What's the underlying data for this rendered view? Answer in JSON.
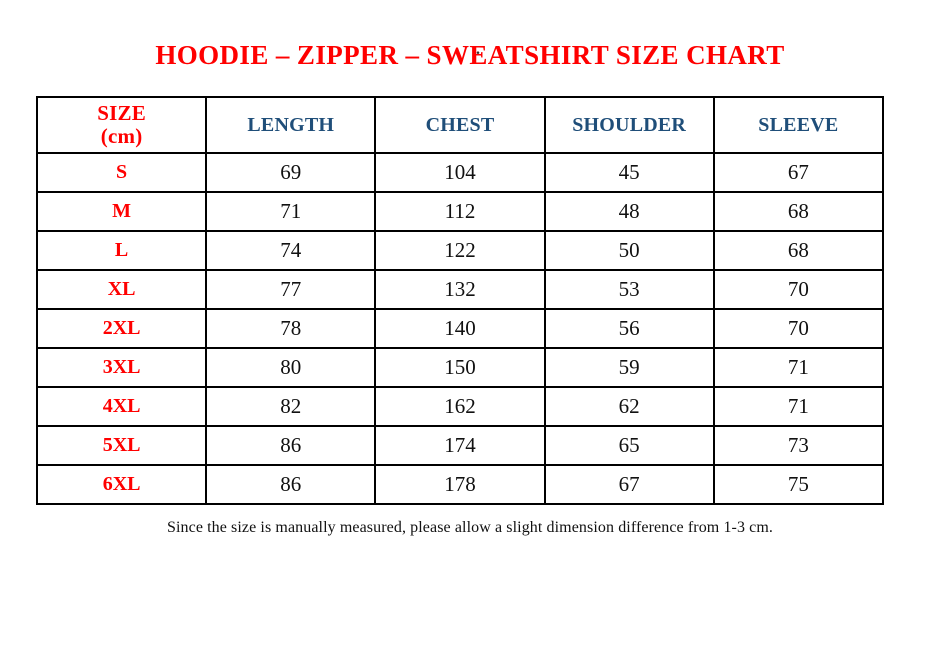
{
  "decor": {
    "dot": "."
  },
  "colors": {
    "title_red": "#ff0000",
    "header_blue": "#1f4e79",
    "body_text": "#111111",
    "border": "#000000",
    "background": "#ffffff"
  },
  "chart_data": {
    "type": "table",
    "title": "HOODIE – ZIPPER – SWEATSHIRT SIZE CHART",
    "header": {
      "size_line1": "SIZE",
      "size_line2": "(cm)",
      "cols": [
        "LENGTH",
        "CHEST",
        "SHOULDER",
        "SLEEVE"
      ]
    },
    "rows": [
      {
        "size": "S",
        "length": 69,
        "chest": 104,
        "shoulder": 45,
        "sleeve": 67
      },
      {
        "size": "M",
        "length": 71,
        "chest": 112,
        "shoulder": 48,
        "sleeve": 68
      },
      {
        "size": "L",
        "length": 74,
        "chest": 122,
        "shoulder": 50,
        "sleeve": 68
      },
      {
        "size": "XL",
        "length": 77,
        "chest": 132,
        "shoulder": 53,
        "sleeve": 70
      },
      {
        "size": "2XL",
        "length": 78,
        "chest": 140,
        "shoulder": 56,
        "sleeve": 70
      },
      {
        "size": "3XL",
        "length": 80,
        "chest": 150,
        "shoulder": 59,
        "sleeve": 71
      },
      {
        "size": "4XL",
        "length": 82,
        "chest": 162,
        "shoulder": 62,
        "sleeve": 71
      },
      {
        "size": "5XL",
        "length": 86,
        "chest": 174,
        "shoulder": 65,
        "sleeve": 73
      },
      {
        "size": "6XL",
        "length": 86,
        "chest": 178,
        "shoulder": 67,
        "sleeve": 75
      }
    ]
  },
  "footnote": "Since the size is manually measured, please allow a slight dimension difference from 1-3 cm."
}
